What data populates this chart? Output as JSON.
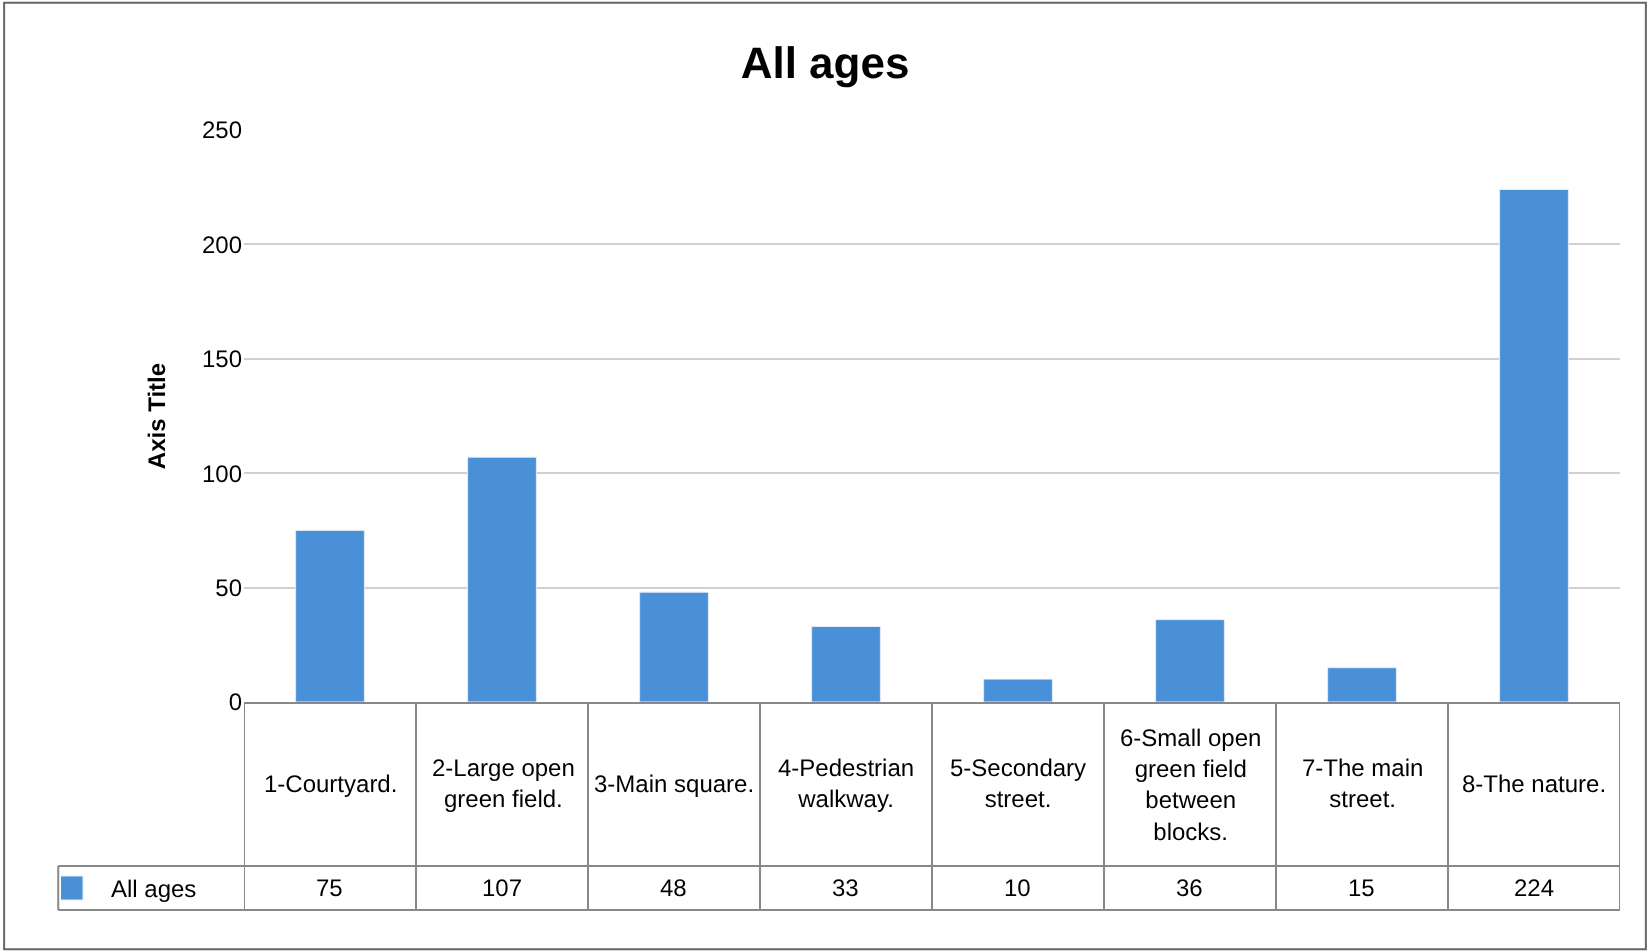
{
  "chart_data": {
    "type": "bar",
    "title": "All ages",
    "ylabel": "Axis Title",
    "categories": [
      "1-Courtyard.",
      "2-Large open green field.",
      "3-Main square.",
      "4-Pedestrian walkway.",
      "5-Secondary street.",
      "6-Small open green field between blocks.",
      "7-The main street.",
      "8-The nature."
    ],
    "series": [
      {
        "name": "All ages",
        "color": "#4a90d9",
        "values": [
          75,
          107,
          48,
          33,
          10,
          36,
          15,
          224
        ]
      }
    ],
    "ylim": [
      0,
      250
    ],
    "yticks": [
      0,
      50,
      100,
      150,
      200,
      250
    ],
    "grid": "y",
    "legend": "bottom left",
    "data_labels": true
  }
}
